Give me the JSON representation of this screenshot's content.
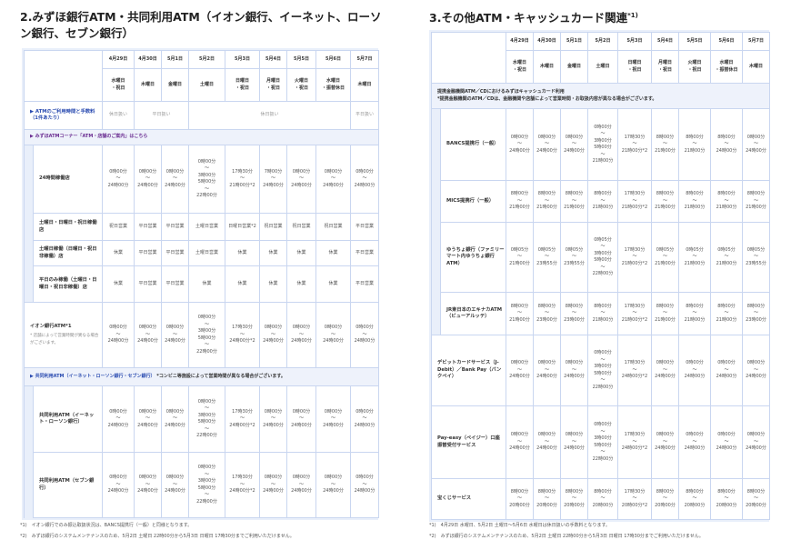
{
  "left": {
    "title": "2.みずほ銀行ATM・共同利用ATM（イオン銀行、イーネット、ローソン銀行、セブン銀行）",
    "dates": [
      "4月29日",
      "4月30日",
      "5月1日",
      "5月2日",
      "5月3日",
      "5月4日",
      "5月5日",
      "5月6日",
      "5月7日"
    ],
    "weekdays": [
      "水曜日\n・祝日",
      "木曜日",
      "金曜日",
      "土曜日",
      "日曜日\n・祝日",
      "月曜日\n・祝日",
      "火曜日\n・祝日",
      "水曜日\n・振替休日",
      "木曜日"
    ],
    "rows": [
      {
        "label": "▶ ATMのご利用時間と手数料（1件あたり）",
        "link": "blue",
        "h": 31,
        "cells": [
          {
            "t": "休日扱い",
            "s": 1
          },
          {
            "t": "平日扱い",
            "s": 2
          },
          {
            "t": "休日扱い",
            "s": 5
          },
          {
            "t": "平日扱い",
            "s": 1
          }
        ]
      },
      {
        "section": "▶ みずほATMコーナー「ATM・店舗のご案内」はこちら",
        "link": "purple",
        "h": 17
      },
      {
        "label": "24時間稼働店",
        "indent": true,
        "h": 75,
        "cells": [
          "0時00分\n〜\n24時00分",
          "0時00分\n〜\n24時00分",
          "0時00分\n〜\n24時00分",
          "0時00分\n〜\n3時00分\n5時00分\n〜\n22時00分",
          "17時30分\n〜\n21時00分*2",
          "7時00分\n〜\n24時00分",
          "0時00分\n〜\n24時00分",
          "0時00分\n〜\n24時00分",
          "0時00分\n〜\n24時00分"
        ]
      },
      {
        "label": "土曜日・日曜日・祝日稼働店",
        "indent": true,
        "h": 30,
        "cells": [
          "祝日営業",
          "平日営業",
          "平日営業",
          "土曜日営業",
          "日曜日営業*2",
          "祝日営業",
          "祝日営業",
          "祝日営業",
          "平日営業"
        ]
      },
      {
        "label": "土曜日稼働（日曜日・祝日非稼働）店",
        "indent": true,
        "h": 28,
        "cells": [
          "休業",
          "平日営業",
          "平日営業",
          "土曜日営業",
          "休業",
          "休業",
          "休業",
          "休業",
          "平日営業"
        ]
      },
      {
        "label": "平日のみ稼働（土曜日・日曜日・祝日非稼働）店",
        "indent": true,
        "h": 40,
        "cells": [
          "休業",
          "平日営業",
          "平日営業",
          "休業",
          "休業",
          "休業",
          "休業",
          "休業",
          "平日営業"
        ]
      },
      {
        "label": "イオン銀行ATM*1",
        "note": "* 店舗によって営業時間が異なる場合がございます。",
        "h": 72,
        "cells": [
          "0時00分\n〜\n24時00分",
          "0時00分\n〜\n24時00分",
          "0時00分\n〜\n24時00分",
          "0時00分\n〜\n3時00分\n5時00分\n〜\n22時00分",
          "17時30分\n〜\n24時00分*2",
          "0時00分\n〜\n24時00分",
          "0時00分\n〜\n24時00分",
          "0時00分\n〜\n24時00分",
          "0時00分\n〜\n24時00分"
        ]
      },
      {
        "section": "▶ 共同利用ATM（イーネット・ローソン銀行・セブン銀行）",
        "sectionNote": " *コンビニ等施設によって営業時間が異なる場合がございます。",
        "link": "blue",
        "h": 20
      },
      {
        "label": "共同利用ATM（イーネット・ローソン銀行）",
        "indent": true,
        "h": 73,
        "cells": [
          "0時00分\n〜\n24時00分",
          "0時00分\n〜\n24時00分",
          "0時00分\n〜\n24時00分",
          "0時00分\n〜\n3時00分\n5時00分\n〜\n22時00分",
          "17時30分\n〜\n24時00分*2",
          "0時00分\n〜\n24時00分",
          "0時00分\n〜\n24時00分",
          "0時00分\n〜\n24時00分",
          "0時00分\n〜\n24時00分"
        ]
      },
      {
        "label": "共同利用ATM（セブン銀行）",
        "indent": true,
        "h": 72,
        "cells": [
          "0時00分\n〜\n24時00分",
          "0時00分\n〜\n24時00分",
          "0時00分\n〜\n24時00分",
          "0時00分\n〜\n3時00分\n5時00分\n〜\n22時00分",
          "17時30分\n〜\n24時00分*2",
          "0時00分\n〜\n24時00分",
          "0時00分\n〜\n24時00分",
          "0時00分\n〜\n24時00分",
          "0時00分\n〜\n24時00分"
        ]
      }
    ],
    "footnotes": [
      "*1)　イオン銀行でのみ振込取扱状況は、BANCS提携行（一般）と同様となります。",
      "*2)　みずほ銀行のシステムメンテナンスのため、5月2日 土曜日 22時00分から5月3日 日曜日 17時30分までご利用いただけません。"
    ]
  },
  "right": {
    "title": "3.その他ATM・キャッシュカード関連",
    "title_sup": "*1)",
    "dates": [
      "4月29日",
      "4月30日",
      "5月1日",
      "5月2日",
      "5月3日",
      "5月4日",
      "5月5日",
      "5月6日",
      "5月7日"
    ],
    "weekdays": [
      "水曜日\n・祝日",
      "木曜日",
      "金曜日",
      "土曜日",
      "日曜日\n・祝日",
      "月曜日\n・祝日",
      "火曜日\n・祝日",
      "水曜日\n・振替休日",
      "木曜日"
    ],
    "rows": [
      {
        "section": "提携金融機関ATM／CDにおけるみずほキャッシュカード利用",
        "sectionNote": "\n*提携金融機関のATM／CDは、金融機関や店舗によって営業時間・お取扱内容が異なる場合がございます。",
        "h": 28
      },
      {
        "label": "BANCS提携行（一般）",
        "indent": true,
        "h": 79,
        "cells": [
          "0時00分\n〜\n24時00分",
          "0時00分\n〜\n24時00分",
          "0時00分\n〜\n24時00分",
          "0時00分\n〜\n3時00分\n5時00分\n〜\n21時00分",
          "17時30分\n〜\n21時00分*2",
          "8時00分\n〜\n21時00分",
          "8時00分\n〜\n21時00分",
          "8時00分\n〜\n24時00分",
          "0時00分\n〜\n24時00分"
        ]
      },
      {
        "label": "MICS提携行（一般）",
        "indent": true,
        "h": 46,
        "cells": [
          "8時00分\n〜\n21時00分",
          "8時00分\n〜\n21時00分",
          "8時00分\n〜\n21時00分",
          "8時00分\n〜\n21時00分",
          "17時30分\n〜\n21時00分*2",
          "8時00分\n〜\n21時00分",
          "8時00分\n〜\n21時00分",
          "8時00分\n〜\n21時00分",
          "8時00分\n〜\n21時00分"
        ]
      },
      {
        "label": "ゆうちょ銀行（ファミリーマート内ゆうちょ銀行ATM）",
        "indent": true,
        "h": 77,
        "cells": [
          "0時05分\n〜\n21時00分",
          "0時05分\n〜\n23時55分",
          "0時05分\n〜\n23時55分",
          "0時05分\n〜\n3時00分\n5時00分\n〜\n22時00分",
          "17時30分\n〜\n21時00分*2",
          "0時05分\n〜\n21時00分",
          "0時05分\n〜\n21時00分",
          "0時05分\n〜\n21時00分",
          "0時05分\n〜\n23時55分"
        ]
      },
      {
        "label": "JR東日本のエキナカATM（ビューアルッテ）",
        "indent": true,
        "h": 47,
        "cells": [
          "8時00分\n〜\n21時00分",
          "8時00分\n〜\n23時00分",
          "8時00分\n〜\n23時00分",
          "8時00分\n〜\n21時00分",
          "17時30分\n〜\n21時00分*2",
          "8時00分\n〜\n21時00分",
          "8時00分\n〜\n21時00分",
          "8時00分\n〜\n21時00分",
          "8時00分\n〜\n23時00分"
        ]
      },
      {
        "label": "デビットカードサービス（J-Debit）／Bank Pay（バンクペイ）",
        "h": 78,
        "cells": [
          "0時00分\n〜\n24時00分",
          "0時00分\n〜\n24時00分",
          "0時00分\n〜\n24時00分",
          "0時00分\n〜\n3時00分\n5時00分\n〜\n22時00分",
          "17時30分\n〜\n24時00分*2",
          "0時00分\n〜\n24時00分",
          "0時00分\n〜\n24時00分",
          "0時00分\n〜\n24時00分",
          "0時00分\n〜\n24時00分"
        ]
      },
      {
        "label": "Pay-easy（ペイジー）口座振替受付サービス",
        "h": 80,
        "cells": [
          "0時00分\n〜\n24時00分",
          "0時00分\n〜\n24時00分",
          "0時00分\n〜\n24時00分",
          "0時00分\n〜\n3時00分\n5時00分\n〜\n22時00分",
          "17時30分\n〜\n24時00分*2",
          "0時00分\n〜\n24時00分",
          "0時00分\n〜\n24時00分",
          "0時00分\n〜\n24時00分",
          "0時00分\n〜\n24時00分"
        ]
      },
      {
        "label": "宝くじサービス",
        "h": 45,
        "cells": [
          "8時00分\n〜\n20時00分",
          "8時00分\n〜\n20時00分",
          "8時00分\n〜\n20時00分",
          "8時00分\n〜\n20時00分",
          "17時30分\n〜\n20時00分*2",
          "8時00分\n〜\n20時00分",
          "8時00分\n〜\n20時00分",
          "8時00分\n〜\n20時00分",
          "8時00分\n〜\n20時00分"
        ]
      }
    ],
    "footnotes": [
      "*1)　4月29日 水曜日、5月2日 土曜日〜5月6日 水曜日は休日扱いの手数料となります。",
      "*2)　みずほ銀行のシステムメンテナンスのため、5月2日 土曜日 22時00分から5月3日 日曜日 17時30分までご利用いただけません。"
    ]
  },
  "colors": {
    "border": "#c9d6f0",
    "panel": "#e9effa",
    "link": "#2a4bb0",
    "link_visited": "#6a2c91"
  }
}
